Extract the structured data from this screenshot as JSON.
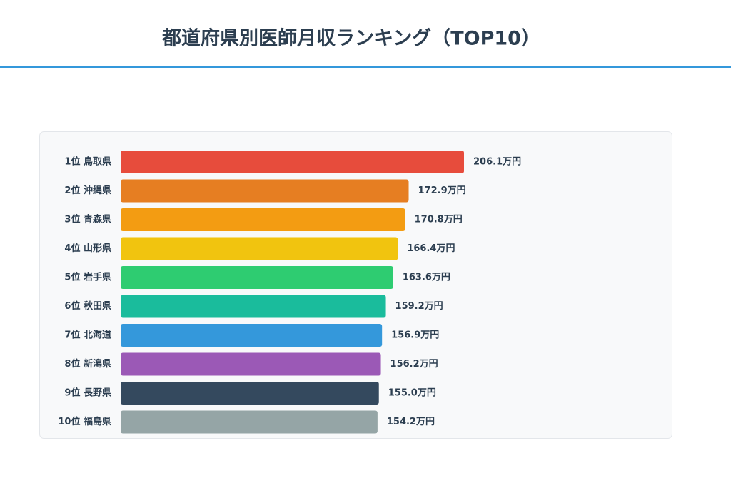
{
  "chart_data": {
    "type": "hbar",
    "title": "都道府県別医師月収ランキング（TOP10）",
    "categories": [
      "1位 鳥取県",
      "2位 沖縄県",
      "3位 青森県",
      "4位 山形県",
      "5位 岩手県",
      "6位 秋田県",
      "7位 北海道",
      "8位 新潟県",
      "9位 長野県",
      "10位 福島県"
    ],
    "values": [
      206.1,
      172.9,
      170.8,
      166.4,
      163.6,
      159.2,
      156.9,
      156.2,
      155.0,
      154.2
    ],
    "value_labels": [
      "206.1万円",
      "172.9万円",
      "170.8万円",
      "166.4万円",
      "163.6万円",
      "159.2万円",
      "156.9万円",
      "156.2万円",
      "155.0万円",
      "154.2万円"
    ],
    "colors": [
      "#e74c3c",
      "#e67e22",
      "#f39c12",
      "#f1c40f",
      "#2ecc71",
      "#1abc9c",
      "#3498db",
      "#9b59b6",
      "#34495e",
      "#95a5a6"
    ]
  }
}
